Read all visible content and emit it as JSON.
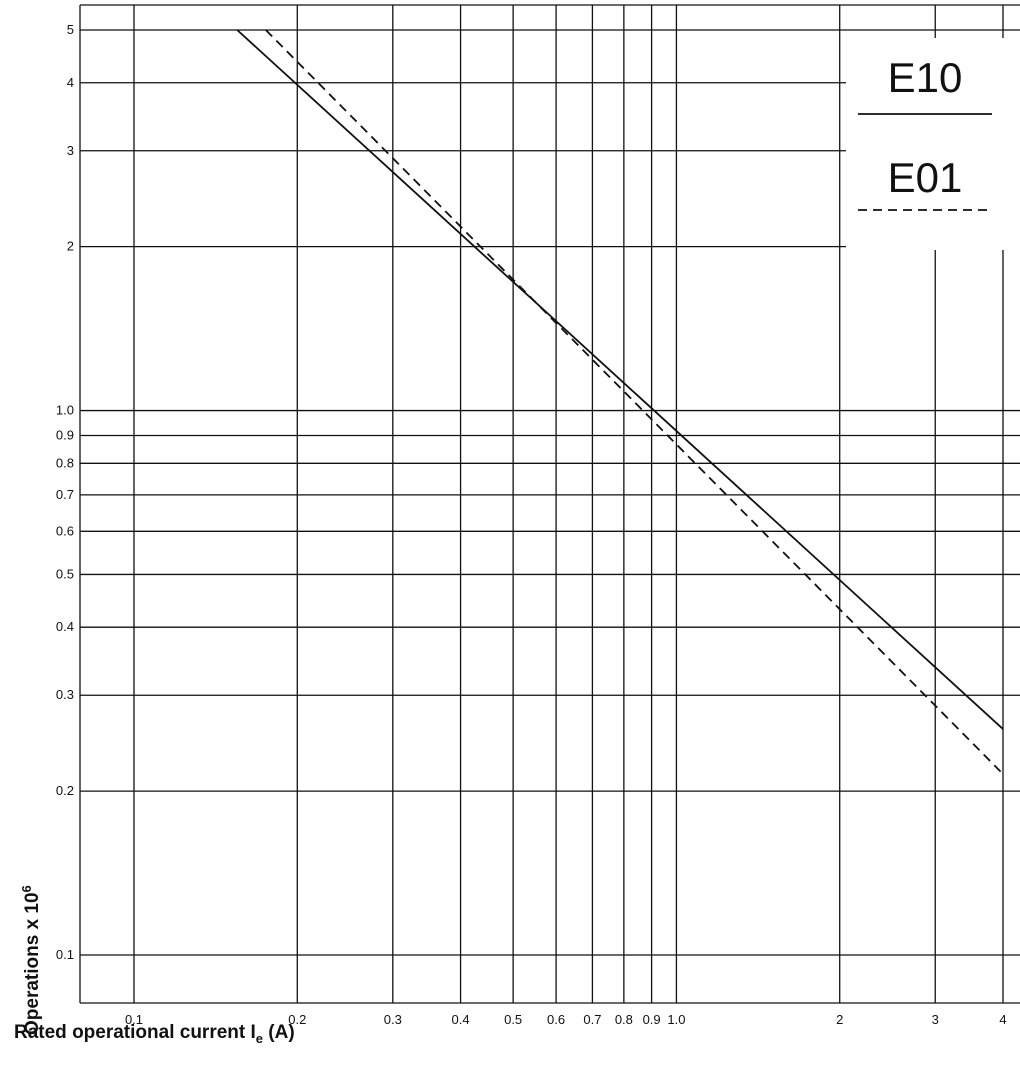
{
  "chart_data": {
    "type": "line",
    "title": "",
    "xlabel": "Rated operational current I",
    "xlabel_sub": "e",
    "xlabel_unit": " (A)",
    "ylabel": "Operations x 10",
    "ylabel_sup": "6",
    "x_scale": "log",
    "y_scale": "log",
    "xlim": [
      0.08,
      4.2
    ],
    "ylim": [
      0.08,
      5.4
    ],
    "grid": true,
    "legend": "top-right",
    "x_ticks": [
      {
        "value": 0.1,
        "label": "0.1"
      },
      {
        "value": 0.2,
        "label": "0.2"
      },
      {
        "value": 0.3,
        "label": "0.3"
      },
      {
        "value": 0.4,
        "label": "0.4"
      },
      {
        "value": 0.5,
        "label": "0.5"
      },
      {
        "value": 0.6,
        "label": "0.6"
      },
      {
        "value": 0.7,
        "label": "0.7"
      },
      {
        "value": 0.8,
        "label": "0.8"
      },
      {
        "value": 0.9,
        "label": "0.9"
      },
      {
        "value": 1.0,
        "label": "1.0"
      },
      {
        "value": 2,
        "label": "2"
      },
      {
        "value": 3,
        "label": "3"
      },
      {
        "value": 4,
        "label": "4"
      }
    ],
    "y_ticks": [
      {
        "value": 0.1,
        "label": "0.1"
      },
      {
        "value": 0.2,
        "label": "0.2"
      },
      {
        "value": 0.3,
        "label": "0.3"
      },
      {
        "value": 0.4,
        "label": "0.4"
      },
      {
        "value": 0.5,
        "label": "0.5"
      },
      {
        "value": 0.6,
        "label": "0.6"
      },
      {
        "value": 0.7,
        "label": "0.7"
      },
      {
        "value": 0.8,
        "label": "0.8"
      },
      {
        "value": 0.9,
        "label": "0.9"
      },
      {
        "value": 1.0,
        "label": "1.0"
      },
      {
        "value": 2,
        "label": "2"
      },
      {
        "value": 3,
        "label": "3"
      },
      {
        "value": 4,
        "label": "4"
      },
      {
        "value": 5,
        "label": "5"
      }
    ],
    "series": [
      {
        "name": "E10",
        "style": "solid",
        "x": [
          0.155,
          4.0
        ],
        "y": [
          5.0,
          0.26
        ]
      },
      {
        "name": "E01",
        "style": "dashed",
        "x": [
          0.175,
          4.0
        ],
        "y": [
          5.0,
          0.215
        ]
      }
    ]
  }
}
